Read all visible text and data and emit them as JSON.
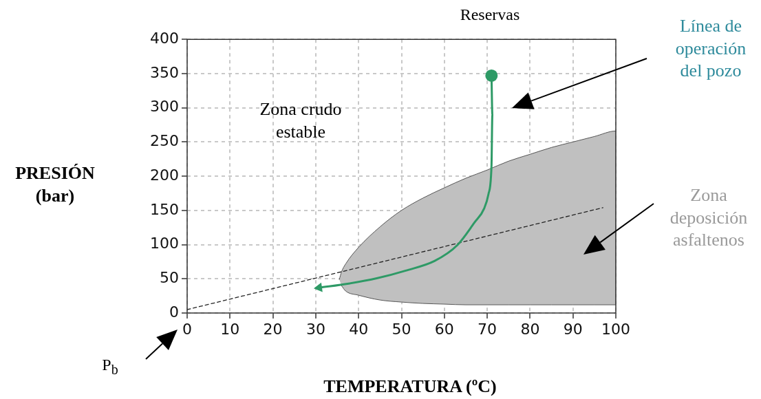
{
  "chart_data": {
    "type": "line",
    "xlabel": "TEMPERATURA (ºC)",
    "ylabel": "PRESIÓN (bar)",
    "annotations": [
      "Reservas",
      "Zona crudo estable",
      "Línea de operación del pozo",
      "Zona deposición asfaltenos",
      "P$_{b}$"
    ],
    "xlim": [
      0,
      100
    ],
    "xticks": [
      0,
      10,
      20,
      30,
      40,
      50,
      60,
      70,
      80,
      90,
      100
    ],
    "ylim": [
      0,
      400
    ],
    "yticks": [
      0,
      50,
      100,
      150,
      200,
      250,
      300,
      350,
      400
    ],
    "grid": true,
    "legend": false,
    "series": [
      {
        "type": "area",
        "color": "#c0c0c0",
        "marker": "none",
        "x": [
          35.5,
          36,
          37,
          40,
          45,
          50,
          55,
          60,
          65,
          70,
          75,
          80,
          85,
          90,
          95,
          100,
          100,
          95,
          90,
          85,
          80,
          75,
          70,
          65,
          60,
          55,
          50,
          45,
          40,
          37,
          36
        ],
        "values": [
          49,
          60,
          72,
          96,
          126,
          150,
          168,
          183,
          197,
          209,
          222,
          232,
          242,
          250,
          258,
          266,
          12,
          12,
          12,
          12,
          12,
          12,
          12,
          12,
          13,
          14,
          16,
          19,
          26,
          32,
          40
        ]
      },
      {
        "color": "#222222",
        "marker": "none",
        "line_style": "dashed",
        "x": [
          0,
          97
        ],
        "values": [
          5,
          154
        ]
      },
      {
        "color": "#2e9a66",
        "marker": "none",
        "x": [
          71,
          71.2,
          71,
          70.3,
          69.3,
          67,
          63,
          57.7,
          51,
          44.4,
          37.7,
          30.8
        ],
        "values": [
          347,
          290,
          216,
          174,
          153,
          132,
          99,
          76,
          62,
          51,
          43,
          37
        ]
      },
      {
        "type": "scatter",
        "color": "#2e9a66",
        "marker": "circle",
        "x": [
          71
        ],
        "values": [
          347
        ]
      }
    ]
  }
}
